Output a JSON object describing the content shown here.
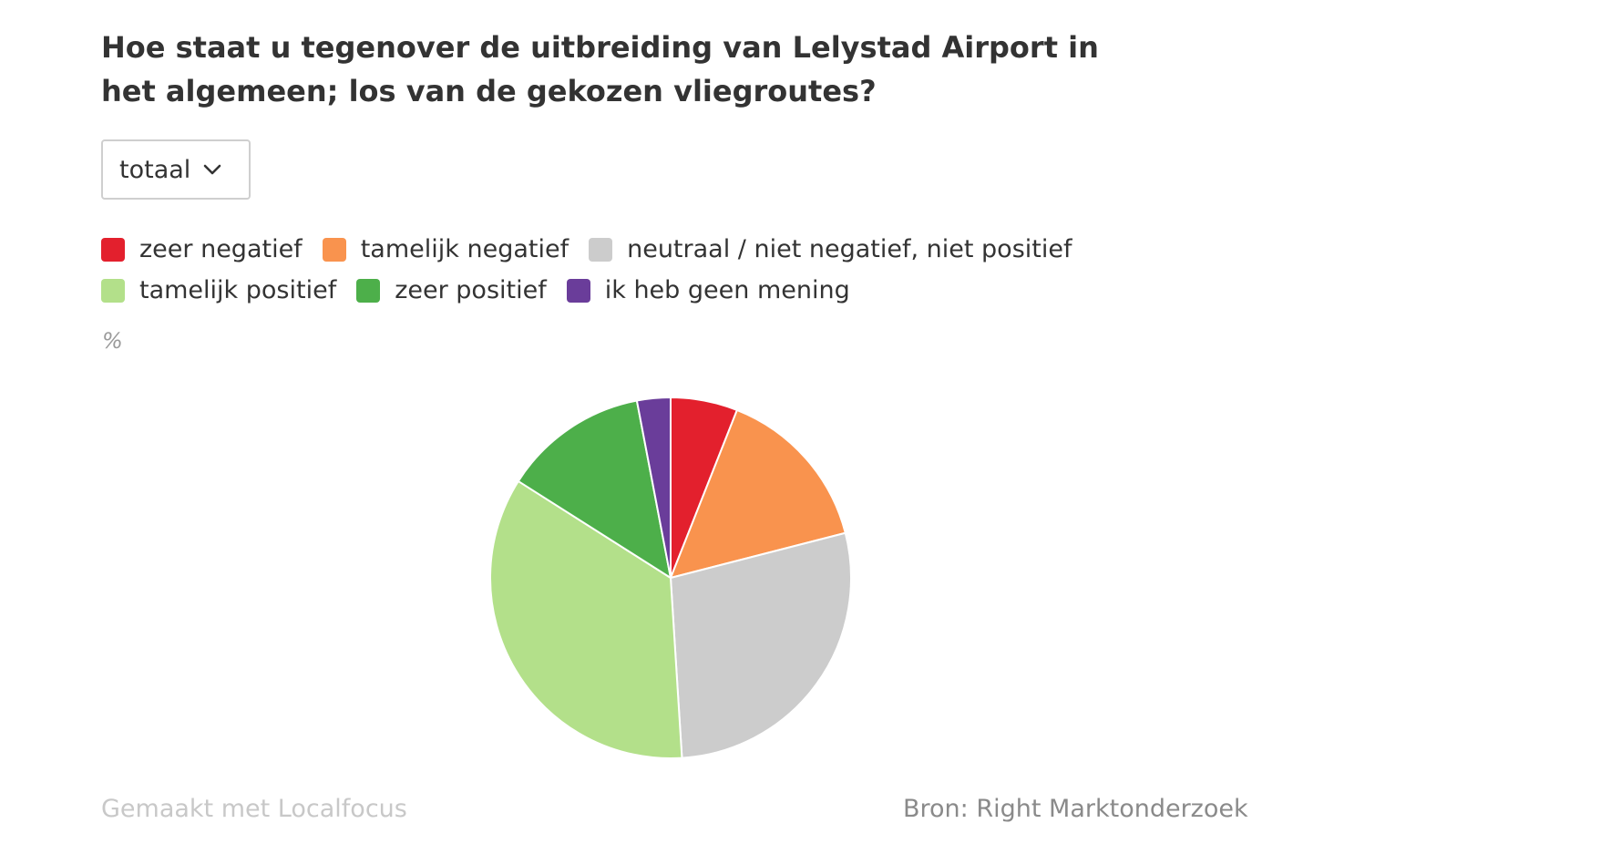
{
  "chart_data": {
    "type": "pie",
    "title": "Hoe staat u tegenover de uitbreiding van Lelystad Airport in het algemeen; los van de gekozen vliegroutes?",
    "unit_label": "%",
    "categories": [
      "zeer negatief",
      "tamelijk negatief",
      "neutraal / niet negatief, niet positief",
      "tamelijk positief",
      "zeer positief",
      "ik heb geen mening"
    ],
    "values": [
      6,
      15,
      28,
      35,
      13,
      3
    ],
    "colors": [
      "#e3202d",
      "#f9934e",
      "#cccccc",
      "#b3e08a",
      "#4daf4a",
      "#6a3d9a"
    ],
    "legend_position": "top-left"
  },
  "filter": {
    "selected": "totaal",
    "icon": "chevron-down-icon"
  },
  "footer": {
    "credit": "Gemaakt met Localfocus",
    "source_label": "Bron:",
    "source": "Right Marktonderzoek"
  }
}
